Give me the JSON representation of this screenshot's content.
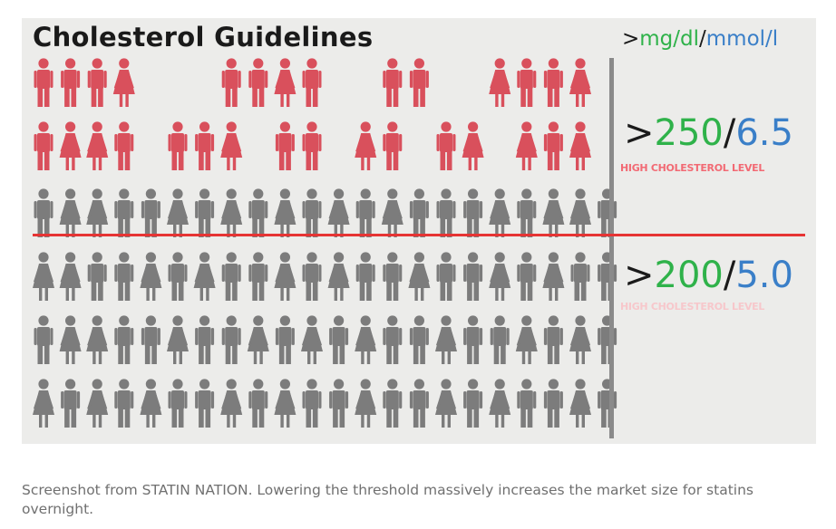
{
  "figure": {
    "title": "Cholesterol Guidelines",
    "units": {
      "prefix": ">",
      "mg": "mg/dl",
      "separator": "/",
      "mmol": "mmol/l"
    },
    "levels": [
      {
        "prefix": ">",
        "mg": "250",
        "separator": "/",
        "mmol": "6.5",
        "label": "HIGH CHOLESTEROL LEVEL",
        "label_color": "#f26a74"
      },
      {
        "prefix": ">",
        "mg": "200",
        "separator": "/",
        "mmol": "5.0",
        "label": "HIGH CHOLESTEROL LEVEL",
        "label_color": "#f7c7cb"
      }
    ],
    "colors": {
      "red_figure": "#d9505c",
      "gray_figure": "#7c7c7c",
      "threshold_line": "#e63434",
      "divider": "#8a8a8a",
      "background": "#ececea"
    },
    "figure_rows": [
      {
        "color": "red",
        "pattern": [
          "man",
          "man",
          "man",
          "woman",
          "gap",
          "gap",
          "gap",
          "man",
          "man",
          "woman",
          "man",
          "gap",
          "gap",
          "man",
          "man",
          "gap",
          "gap",
          "woman",
          "man",
          "man",
          "woman"
        ]
      },
      {
        "color": "red",
        "pattern": [
          "man",
          "woman",
          "woman",
          "man",
          "gap",
          "man",
          "man",
          "woman",
          "gap",
          "man",
          "man",
          "gap",
          "woman",
          "man",
          "gap",
          "man",
          "woman",
          "gap",
          "woman",
          "man",
          "woman"
        ]
      },
      {
        "color": "gray",
        "pattern": [
          "man",
          "woman",
          "woman",
          "man",
          "man",
          "woman",
          "man",
          "woman",
          "man",
          "woman",
          "man",
          "woman",
          "man",
          "woman",
          "man",
          "man",
          "man",
          "woman",
          "man",
          "woman",
          "woman",
          "man"
        ]
      },
      {
        "color": "gray",
        "pattern": [
          "woman",
          "woman",
          "man",
          "man",
          "woman",
          "man",
          "woman",
          "man",
          "man",
          "woman",
          "man",
          "woman",
          "man",
          "man",
          "woman",
          "man",
          "man",
          "woman",
          "man",
          "woman",
          "man",
          "man"
        ]
      },
      {
        "color": "gray",
        "pattern": [
          "man",
          "woman",
          "woman",
          "man",
          "man",
          "woman",
          "man",
          "man",
          "woman",
          "man",
          "woman",
          "man",
          "woman",
          "man",
          "man",
          "woman",
          "man",
          "man",
          "woman",
          "man",
          "woman",
          "man"
        ]
      },
      {
        "color": "gray",
        "pattern": [
          "woman",
          "man",
          "woman",
          "man",
          "woman",
          "man",
          "man",
          "woman",
          "man",
          "woman",
          "man",
          "man",
          "woman",
          "man",
          "man",
          "woman",
          "man",
          "woman",
          "man",
          "man",
          "woman",
          "man"
        ]
      }
    ]
  },
  "caption": "Screenshot from STATIN NATION. Lowering the threshold massively increases the market size for statins overnight."
}
